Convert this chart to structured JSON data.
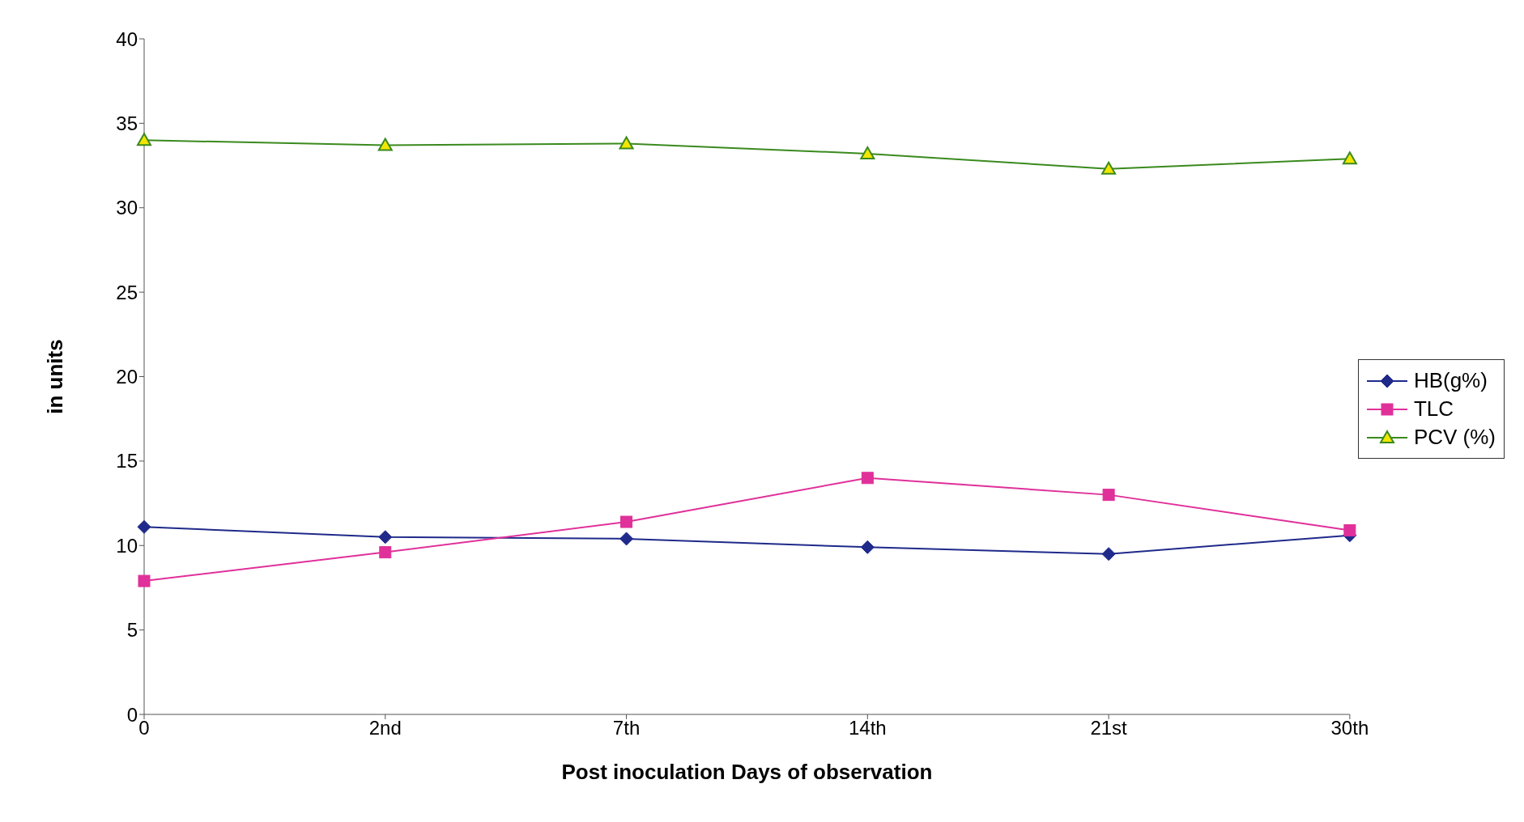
{
  "chart_data": {
    "type": "line",
    "xlabel": "Post inoculation Days of observation",
    "ylabel": "in units",
    "categories": [
      "0",
      "2nd",
      "7th",
      "14th",
      "21st",
      "30th"
    ],
    "series": [
      {
        "name": "HB(g%)",
        "color": "#1f2a8a",
        "marker": "diamond",
        "values": [
          11.1,
          10.5,
          10.4,
          9.9,
          9.5,
          10.6
        ]
      },
      {
        "name": "TLC",
        "color": "#e0309a",
        "marker": "square",
        "values": [
          7.9,
          9.6,
          11.4,
          14.0,
          13.0,
          10.9
        ]
      },
      {
        "name": "PCV (%)",
        "color": "#3a8a1e",
        "marker": "triangle",
        "values": [
          34.0,
          33.7,
          33.8,
          33.2,
          32.3,
          32.9
        ]
      }
    ],
    "ylim": [
      0,
      40
    ],
    "yticks": [
      0,
      5,
      10,
      15,
      20,
      25,
      30,
      35,
      40
    ],
    "grid": false,
    "legend": "right",
    "line_style": "solid"
  }
}
